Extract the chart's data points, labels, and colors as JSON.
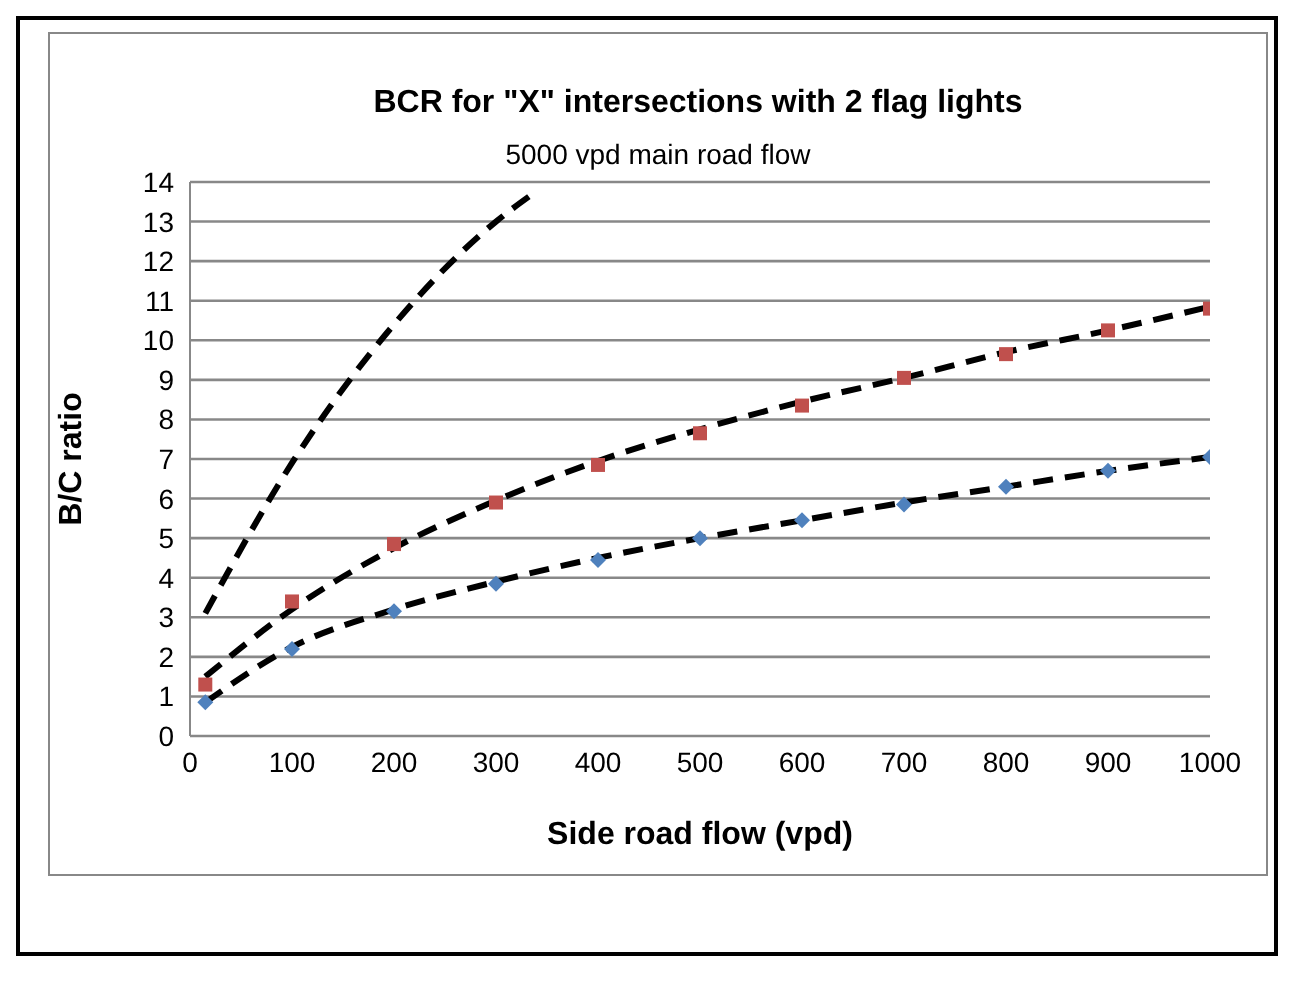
{
  "chart_data": {
    "type": "scatter",
    "title": "BCR for \"X\" intersections with 2 flag lights",
    "subtitle": "5000 vpd main road flow",
    "xlabel": "Side road flow (vpd)",
    "ylabel": "B/C ratio",
    "xlim": [
      0,
      1000
    ],
    "xticks": [
      0,
      100,
      200,
      300,
      400,
      500,
      600,
      700,
      800,
      900,
      1000
    ],
    "ylim": [
      0,
      14
    ],
    "yticks": [
      0,
      1,
      2,
      3,
      4,
      5,
      6,
      7,
      8,
      9,
      10,
      11,
      12,
      13,
      14
    ],
    "grid": "y",
    "legend": false,
    "series": [
      {
        "color": "#4f81bd",
        "marker": "diamond",
        "x": [
          15,
          100,
          200,
          300,
          400,
          500,
          600,
          700,
          800,
          900,
          1000
        ],
        "values": [
          0.85,
          2.2,
          3.15,
          3.85,
          4.45,
          5.0,
          5.45,
          5.85,
          6.3,
          6.7,
          7.05
        ]
      },
      {
        "color": "#c0504d",
        "marker": "square",
        "x": [
          15,
          100,
          200,
          300,
          400,
          500,
          600,
          700,
          800,
          900,
          1000
        ],
        "values": [
          1.3,
          3.4,
          4.85,
          5.9,
          6.85,
          7.65,
          8.35,
          9.05,
          9.65,
          10.25,
          10.8
        ]
      },
      {
        "type": "line",
        "color": "#000000",
        "marker": "none",
        "line_style": "dashed",
        "x": [
          15,
          100,
          200,
          300,
          400,
          500,
          600,
          700,
          800,
          900,
          1000
        ],
        "values": [
          0.85,
          2.25,
          3.2,
          3.9,
          4.5,
          5.0,
          5.45,
          5.9,
          6.3,
          6.7,
          7.05
        ]
      },
      {
        "type": "line",
        "color": "#000000",
        "marker": "none",
        "line_style": "dashed",
        "x": [
          15,
          100,
          200,
          300,
          400,
          500,
          600,
          700,
          800,
          900,
          1000
        ],
        "values": [
          1.5,
          3.2,
          4.75,
          5.95,
          6.95,
          7.75,
          8.45,
          9.05,
          9.7,
          10.25,
          10.85
        ]
      },
      {
        "type": "line",
        "color": "#000000",
        "marker": "none",
        "line_style": "dashed",
        "x": [
          15,
          100,
          200,
          300,
          336
        ],
        "values": [
          3.1,
          6.9,
          10.4,
          13.0,
          13.7
        ]
      }
    ]
  }
}
